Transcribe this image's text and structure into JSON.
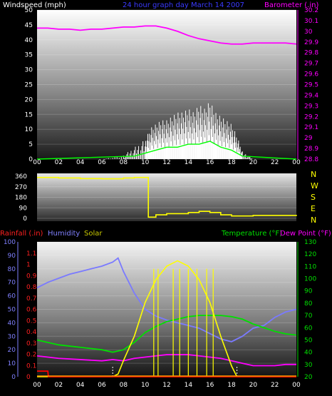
{
  "header": {
    "wind_label": "Windspeed (mph)",
    "title": "24 hour graph day   March 14 2007",
    "baro_label": "Barometer (.in)"
  },
  "labels": {
    "rain": "Rainfall (.in)",
    "humidity": "Humidity",
    "solar": "Solar",
    "temperature": "Temperature (°F)",
    "dewpoint": "Dew Point (°F)"
  },
  "x_ticks": [
    "00",
    "02",
    "04",
    "06",
    "08",
    "10",
    "12",
    "14",
    "16",
    "18",
    "20",
    "22",
    "00"
  ],
  "colors": {
    "wind": "#ffffff",
    "wind_avg": "#00ff00",
    "baro": "#ff00ff",
    "direction": "#ffff00",
    "rain": "#ff0000",
    "humidity": "#7a7aff",
    "solar": "#ffff00",
    "temperature": "#00e000",
    "dewpoint": "#ff00ff"
  },
  "chart_data": [
    {
      "type": "line",
      "title": "24 hour graph day   March 14 2007",
      "xlabel": "",
      "ylabel": "Windspeed (mph)",
      "y2label": "Barometer (.in)",
      "x_range": [
        0,
        24
      ],
      "ylim": [
        0,
        50
      ],
      "y_ticks": [
        0,
        5,
        10,
        15,
        20,
        25,
        30,
        35,
        40,
        45,
        50
      ],
      "y2lim": [
        28.8,
        30.2
      ],
      "y2_ticks": [
        "28.8",
        "28.9",
        "29",
        "29.1",
        "29.2",
        "29.3",
        "29.4",
        "29.5",
        "29.6",
        "29.7",
        "29.8",
        "29.9",
        "30",
        "30.1",
        "30.2"
      ],
      "series": [
        {
          "name": "Barometer (.in)",
          "axis": "right",
          "x": [
            0,
            1,
            2,
            3,
            4,
            5,
            6,
            7,
            8,
            9,
            10,
            11,
            12,
            13,
            14,
            15,
            16,
            17,
            18,
            19,
            20,
            21,
            22,
            23,
            24
          ],
          "values": [
            30.03,
            30.03,
            30.02,
            30.02,
            30.01,
            30.02,
            30.02,
            30.03,
            30.04,
            30.04,
            30.05,
            30.05,
            30.03,
            30.0,
            29.96,
            29.93,
            29.91,
            29.89,
            29.88,
            29.88,
            29.89,
            29.89,
            29.89,
            29.89,
            29.88
          ]
        },
        {
          "name": "Windspeed (mph)",
          "axis": "left",
          "x": [
            0,
            6,
            8,
            9,
            10,
            10.5,
            11,
            11.5,
            12,
            12.5,
            13,
            13.5,
            14,
            14.5,
            15,
            15.5,
            16,
            16.5,
            17,
            17.5,
            18,
            18.5,
            19,
            20,
            24
          ],
          "values": [
            0,
            0,
            1,
            3,
            5,
            8,
            9,
            10,
            10,
            11,
            12,
            12,
            13,
            12,
            14,
            13,
            15,
            12,
            11,
            10,
            9,
            6,
            2,
            0,
            0
          ]
        },
        {
          "name": "Wind average",
          "axis": "left",
          "x": [
            0,
            9,
            10,
            11,
            12,
            13,
            14,
            15,
            16,
            17,
            18,
            19,
            24
          ],
          "values": [
            0,
            1,
            2,
            3,
            4,
            4,
            5,
            5,
            6,
            4,
            3,
            1,
            0
          ]
        }
      ]
    },
    {
      "type": "line",
      "ylabel": "",
      "ylim": [
        0,
        360
      ],
      "y_ticks": [
        0,
        90,
        180,
        270,
        360
      ],
      "direction_labels": [
        "N",
        "W",
        "S",
        "E",
        "N"
      ],
      "series": [
        {
          "name": "Wind direction",
          "x": [
            0,
            2,
            4,
            6,
            8,
            9,
            10,
            10.3,
            11,
            12,
            13,
            14,
            15,
            16,
            17,
            18,
            20,
            22,
            24
          ],
          "values": [
            350,
            345,
            340,
            338,
            345,
            350,
            350,
            10,
            30,
            40,
            40,
            50,
            60,
            50,
            30,
            20,
            25,
            25,
            20
          ]
        }
      ]
    },
    {
      "type": "line",
      "y_left_humidity_lim": [
        0,
        100
      ],
      "humidity_ticks": [
        0,
        10,
        20,
        30,
        40,
        50,
        60,
        70,
        80,
        90,
        100
      ],
      "rain_lim": [
        0,
        1.2
      ],
      "rain_ticks": [
        "0",
        "0.1",
        "0.2",
        "0.3",
        "0.4",
        "0.5",
        "0.6",
        "0.7",
        "0.8",
        "0.9",
        "1",
        "1.1"
      ],
      "temp_lim": [
        20,
        130
      ],
      "temp_ticks": [
        20,
        30,
        40,
        50,
        60,
        70,
        80,
        90,
        100,
        110,
        120,
        130
      ],
      "series": [
        {
          "name": "Humidity",
          "x": [
            0,
            1,
            2,
            3,
            4,
            5,
            6,
            7,
            7.5,
            8,
            9,
            10,
            11,
            12,
            13,
            14,
            15,
            16,
            17,
            18,
            19,
            20,
            21,
            22,
            23,
            24
          ],
          "values": [
            66,
            70,
            73,
            76,
            78,
            80,
            82,
            85,
            88,
            78,
            62,
            50,
            45,
            42,
            40,
            38,
            36,
            32,
            28,
            26,
            30,
            36,
            38,
            44,
            48,
            50
          ]
        },
        {
          "name": "Temperature (°F)",
          "x": [
            0,
            2,
            4,
            6,
            7,
            8,
            9,
            10,
            11,
            12,
            13,
            14,
            15,
            16,
            17,
            18,
            19,
            20,
            21,
            22,
            23,
            24
          ],
          "values": [
            50,
            46,
            44,
            42,
            40,
            42,
            48,
            56,
            61,
            65,
            67,
            69,
            70,
            70,
            70,
            69,
            67,
            63,
            60,
            57,
            55,
            54
          ]
        },
        {
          "name": "Dew Point (°F)",
          "x": [
            0,
            2,
            4,
            6,
            7,
            8,
            9,
            10,
            11,
            12,
            13,
            14,
            15,
            16,
            17,
            18,
            19,
            20,
            21,
            22,
            23,
            24
          ],
          "values": [
            37,
            35,
            34,
            33,
            34,
            33,
            35,
            36,
            37,
            38,
            38,
            38,
            37,
            36,
            35,
            33,
            31,
            29,
            29,
            29,
            30,
            30
          ]
        },
        {
          "name": "Solar",
          "x": [
            0,
            7,
            7.5,
            8,
            9,
            10,
            11,
            12,
            13,
            14,
            15,
            16,
            17,
            18,
            18.5,
            24
          ],
          "values": [
            0,
            0,
            2,
            12,
            30,
            55,
            72,
            82,
            86,
            82,
            72,
            55,
            30,
            8,
            0,
            0
          ]
        },
        {
          "name": "Rainfall (.in)",
          "x": [
            0,
            0.2,
            1,
            1.05,
            24
          ],
          "values": [
            0.05,
            0.05,
            0.05,
            0,
            0
          ]
        }
      ]
    }
  ]
}
